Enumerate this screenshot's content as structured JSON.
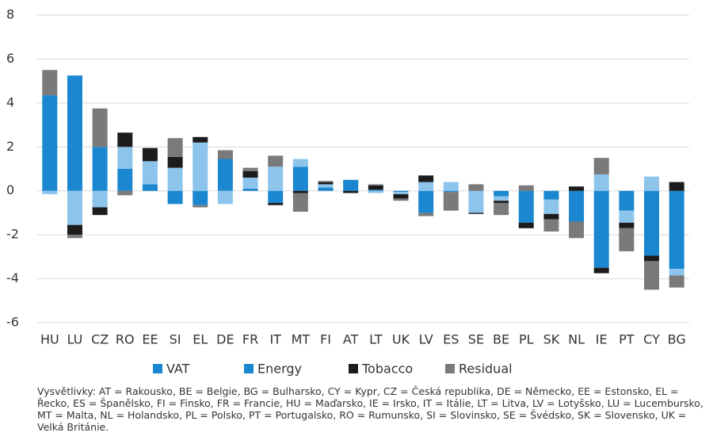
{
  "chart_data": {
    "type": "bar",
    "stacked": true,
    "categories": [
      "HU",
      "LU",
      "CZ",
      "RO",
      "EE",
      "SI",
      "EL",
      "DE",
      "FR",
      "IT",
      "MT",
      "FI",
      "AT",
      "LT",
      "UK",
      "LV",
      "ES",
      "SE",
      "BE",
      "PL",
      "SK",
      "NL",
      "IE",
      "PT",
      "CY",
      "BG"
    ],
    "series": [
      {
        "name": "VAT",
        "color": "#1a87d0",
        "values": [
          4.35,
          5.25,
          2.0,
          1.0,
          0.3,
          -0.6,
          -0.65,
          1.45,
          0.1,
          -0.55,
          1.1,
          0.15,
          0.5,
          0.05,
          -0.05,
          -1.0,
          -0.05,
          0,
          -0.25,
          -1.45,
          -0.4,
          -1.4,
          -3.5,
          -0.9,
          -2.95,
          -3.55
        ]
      },
      {
        "name": "Energy",
        "color": "#8dc4ec",
        "values": [
          -0.15,
          -1.55,
          -0.75,
          1.0,
          1.05,
          1.05,
          2.2,
          -0.6,
          0.5,
          1.1,
          0.35,
          0.15,
          0,
          -0.1,
          -0.1,
          0.4,
          0.4,
          -1.0,
          -0.2,
          0,
          -0.65,
          0,
          0.75,
          -0.55,
          0.65,
          -0.3
        ]
      },
      {
        "name": "Tobacco",
        "color": "#1c1c1c",
        "values": [
          0,
          -0.45,
          -0.35,
          0.65,
          0.6,
          0.5,
          0.25,
          0,
          0.3,
          -0.1,
          -0.1,
          0.1,
          -0.1,
          0.2,
          -0.2,
          0.3,
          0,
          -0.05,
          -0.1,
          -0.25,
          -0.25,
          0.2,
          -0.25,
          -0.25,
          -0.25,
          0.4
        ]
      },
      {
        "name": "Residual",
        "color": "#7a7a7a",
        "values": [
          1.15,
          -0.15,
          1.75,
          -0.2,
          0,
          0.85,
          -0.1,
          0.4,
          0.15,
          0.5,
          -0.85,
          0.05,
          0,
          0.05,
          -0.1,
          -0.15,
          -0.85,
          0.3,
          -0.55,
          0.25,
          -0.55,
          -0.75,
          0.75,
          -1.05,
          -1.3,
          -0.55
        ]
      }
    ],
    "ylim": [
      -6,
      8
    ],
    "yticks": [
      -6,
      -4,
      -2,
      0,
      2,
      4,
      6,
      8
    ],
    "grid": true,
    "legend": "bottom",
    "note": "Vysvětlivky: AT = Rakousko, BE = Belgie, BG = Bulharsko, CY = Kypr, CZ = Česká republika, DE = Německo, EE = Estonsko, EL = Řecko, ES = Španělsko, FI = Finsko, FR = Francie, HU = Maďarsko, IE = Irsko, IT = Itálie, LT = Litva, LV = Lotyšsko, LU = Lucembursko, MT = Malta, NL = Holandsko, PL = Polsko, PT = Portugalsko, RO = Rumunsko, SI = Slovinsko, SE = Švédsko, SK = Slovensko, UK = Velká Británie."
  }
}
